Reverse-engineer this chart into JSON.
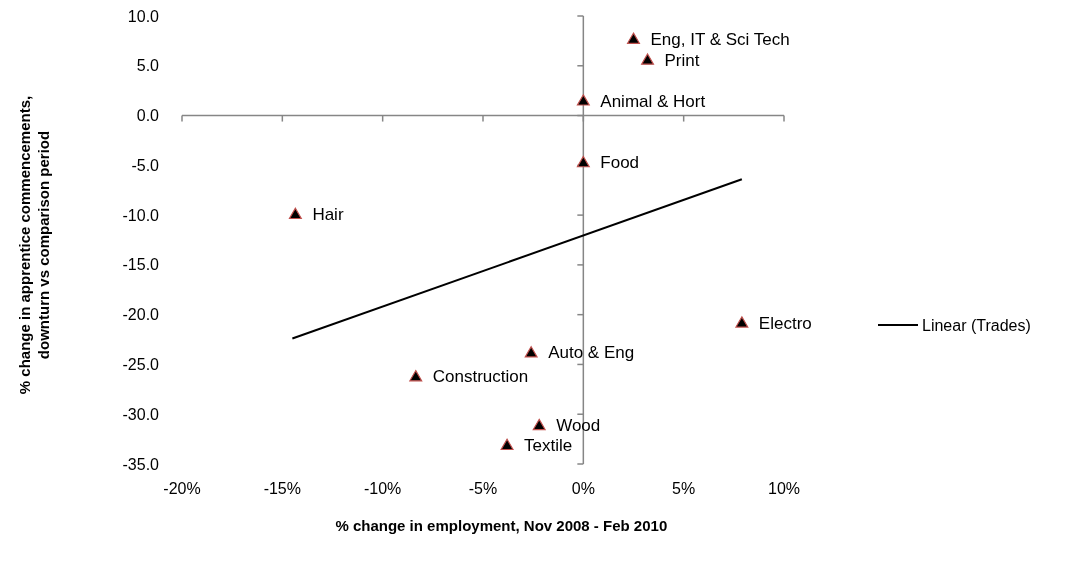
{
  "chart_data": {
    "type": "scatter",
    "xlabel": "% change in employment,  Nov 2008 - Feb 2010",
    "ylabel": "% change in apprentice  commencements, downturn vs comparison  period",
    "xlim": [
      -20,
      10
    ],
    "xticks": [
      {
        "value": -20,
        "label": "-20%"
      },
      {
        "value": -15,
        "label": "-15%"
      },
      {
        "value": -10,
        "label": "-10%"
      },
      {
        "value": -5,
        "label": "-5%"
      },
      {
        "value": 0,
        "label": "0%"
      },
      {
        "value": 5,
        "label": "5%"
      },
      {
        "value": 10,
        "label": "10%"
      }
    ],
    "ylim": [
      -35,
      10
    ],
    "yticks": [
      {
        "value": 10,
        "label": "10.0"
      },
      {
        "value": 5,
        "label": "5.0"
      },
      {
        "value": 0,
        "label": "0.0"
      },
      {
        "value": -5,
        "label": "-5.0"
      },
      {
        "value": -10,
        "label": "-10.0"
      },
      {
        "value": -15,
        "label": "-15.0"
      },
      {
        "value": -20,
        "label": "-20.0"
      },
      {
        "value": -25,
        "label": "-25.0"
      },
      {
        "value": -30,
        "label": "-30.0"
      },
      {
        "value": -35,
        "label": "-35.0"
      }
    ],
    "legend": "right",
    "series": [
      {
        "marker": "triangle",
        "color": "#000000",
        "x": [
          2.5,
          3.2,
          0,
          0,
          -14.35,
          7.9,
          -2.6,
          -8.35,
          -2.2,
          -3.8
        ],
        "values": [
          7.7,
          5.6,
          1.5,
          -4.7,
          -9.9,
          -20.8,
          -23.8,
          -26.2,
          -31.1,
          -33.1
        ]
      },
      {
        "type": "line",
        "name": "Linear (Trades)",
        "color": "#000000",
        "x": [
          -14.5,
          7.9
        ],
        "values": [
          -22.4,
          -6.4
        ]
      }
    ],
    "annotations": [
      {
        "text": "Eng, IT & Sci Tech",
        "x": 2.5,
        "y": 7.7
      },
      {
        "text": "Print",
        "x": 3.2,
        "y": 5.6
      },
      {
        "text": "Animal & Hort",
        "x": 0,
        "y": 1.5
      },
      {
        "text": "Food",
        "x": 0,
        "y": -4.7
      },
      {
        "text": "Hair",
        "x": -14.35,
        "y": -9.9
      },
      {
        "text": "Electro",
        "x": 7.9,
        "y": -20.8
      },
      {
        "text": "Auto & Eng",
        "x": -2.6,
        "y": -23.8
      },
      {
        "text": "Construction",
        "x": -8.35,
        "y": -26.2
      },
      {
        "text": "Wood",
        "x": -2.2,
        "y": -31.1
      },
      {
        "text": "Textile",
        "x": -3.8,
        "y": -33.1
      }
    ]
  }
}
